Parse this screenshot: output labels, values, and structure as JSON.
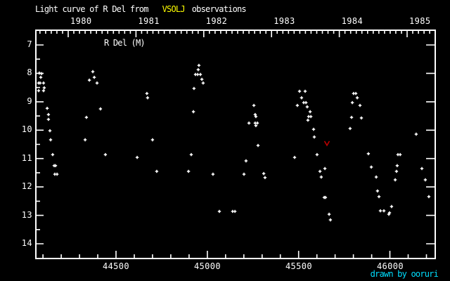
{
  "title": {
    "prefix": "Light curve of R Del from",
    "highlight": "VSOLJ",
    "suffix": "observations"
  },
  "plot_label": "R Del (M)",
  "credit": "drawn by ooruri",
  "colors": {
    "background": "#000000",
    "foreground": "#ffffff",
    "highlight": "#ffff00",
    "credit": "#00dfff",
    "limit_marker": "#bb0000",
    "points": "#ffffff"
  },
  "chart_data": {
    "type": "scatter",
    "title": "Light curve of R Del from VSOLJ observations",
    "grid": false,
    "x_axis": {
      "bottom_ticks": [
        44500,
        45000,
        45500,
        46000
      ],
      "bottom_tick_labels": [
        "44500",
        "45000",
        "45500",
        "46000"
      ],
      "minor_tick_step": 100,
      "top_ticks_years": [
        1980,
        1981,
        1982,
        1983,
        1984,
        1985
      ],
      "top_tick_labels": [
        "1980",
        "1981",
        "1982",
        "1983",
        "1984",
        "1985"
      ],
      "range": [
        44057,
        46252
      ]
    },
    "y_axis": {
      "ticks": [
        7,
        8,
        9,
        10,
        11,
        12,
        13,
        14
      ],
      "tick_labels": [
        "7",
        "8",
        "9",
        "10",
        "11",
        "12",
        "13",
        "14"
      ],
      "minor_tick_step": 0.5,
      "range": [
        6.5,
        14.5
      ],
      "inverted": true
    },
    "series": [
      {
        "name": "VSOLJ observations",
        "marker": "plus",
        "color": "#ffffff",
        "points": [
          [
            44080,
            7.99
          ],
          [
            44092,
            8.01
          ],
          [
            44088,
            8.14
          ],
          [
            44076,
            8.34
          ],
          [
            44084,
            8.34
          ],
          [
            44103,
            8.34
          ],
          [
            44107,
            8.51
          ],
          [
            44076,
            8.61
          ],
          [
            44103,
            8.61
          ],
          [
            44123,
            9.23
          ],
          [
            44130,
            9.45
          ],
          [
            44130,
            9.62
          ],
          [
            44138,
            10.02
          ],
          [
            44142,
            10.34
          ],
          [
            44153,
            10.86
          ],
          [
            44161,
            11.25
          ],
          [
            44169,
            11.25
          ],
          [
            44165,
            11.55
          ],
          [
            44177,
            11.55
          ],
          [
            44331,
            10.34
          ],
          [
            44338,
            9.55
          ],
          [
            44373,
            7.94
          ],
          [
            44381,
            8.14
          ],
          [
            44354,
            8.24
          ],
          [
            44396,
            8.34
          ],
          [
            44415,
            9.25
          ],
          [
            44442,
            10.86
          ],
          [
            44616,
            10.96
          ],
          [
            44669,
            8.71
          ],
          [
            44673,
            8.86
          ],
          [
            44700,
            10.34
          ],
          [
            44723,
            11.45
          ],
          [
            44897,
            11.45
          ],
          [
            44912,
            10.86
          ],
          [
            44924,
            9.35
          ],
          [
            44927,
            8.53
          ],
          [
            44935,
            8.04
          ],
          [
            44947,
            8.04
          ],
          [
            44950,
            7.87
          ],
          [
            44954,
            7.72
          ],
          [
            44962,
            8.04
          ],
          [
            44970,
            8.21
          ],
          [
            44977,
            8.34
          ],
          [
            45031,
            11.55
          ],
          [
            45066,
            12.86
          ],
          [
            45139,
            12.86
          ],
          [
            45151,
            12.86
          ],
          [
            45201,
            11.55
          ],
          [
            45212,
            11.08
          ],
          [
            45228,
            9.75
          ],
          [
            45255,
            9.13
          ],
          [
            45262,
            9.45
          ],
          [
            45266,
            9.52
          ],
          [
            45262,
            9.75
          ],
          [
            45274,
            9.75
          ],
          [
            45266,
            9.84
          ],
          [
            45278,
            10.54
          ],
          [
            45309,
            11.53
          ],
          [
            45316,
            11.67
          ],
          [
            45478,
            10.96
          ],
          [
            45493,
            9.13
          ],
          [
            45505,
            8.63
          ],
          [
            45536,
            8.63
          ],
          [
            45516,
            8.86
          ],
          [
            45528,
            9.03
          ],
          [
            45540,
            9.03
          ],
          [
            45547,
            9.18
          ],
          [
            45563,
            9.35
          ],
          [
            45555,
            9.52
          ],
          [
            45567,
            9.52
          ],
          [
            45551,
            9.65
          ],
          [
            45582,
            9.97
          ],
          [
            45586,
            10.24
          ],
          [
            45601,
            10.86
          ],
          [
            45617,
            11.45
          ],
          [
            45624,
            11.65
          ],
          [
            45644,
            11.35
          ],
          [
            45640,
            12.37
          ],
          [
            45647,
            12.37
          ],
          [
            45667,
            12.96
          ],
          [
            45674,
            13.16
          ],
          [
            45782,
            9.94
          ],
          [
            45790,
            9.55
          ],
          [
            45794,
            9.03
          ],
          [
            45801,
            8.71
          ],
          [
            45813,
            8.71
          ],
          [
            45821,
            8.86
          ],
          [
            45836,
            9.13
          ],
          [
            45844,
            9.57
          ],
          [
            45882,
            10.83
          ],
          [
            45898,
            11.3
          ],
          [
            45925,
            11.65
          ],
          [
            45932,
            12.14
          ],
          [
            45940,
            12.34
          ],
          [
            45948,
            12.84
          ],
          [
            45967,
            12.84
          ],
          [
            45994,
            12.96
          ],
          [
            45998,
            12.91
          ],
          [
            46009,
            12.69
          ],
          [
            46029,
            11.75
          ],
          [
            46036,
            11.45
          ],
          [
            46040,
            11.25
          ],
          [
            46044,
            10.86
          ],
          [
            46056,
            10.86
          ],
          [
            46144,
            10.14
          ],
          [
            46175,
            11.35
          ],
          [
            46194,
            11.75
          ],
          [
            46213,
            12.34
          ]
        ]
      }
    ],
    "upper_limits": {
      "marker": "v",
      "color": "#bb0000",
      "points": [
        [
          45655,
          10.46
        ]
      ]
    }
  }
}
